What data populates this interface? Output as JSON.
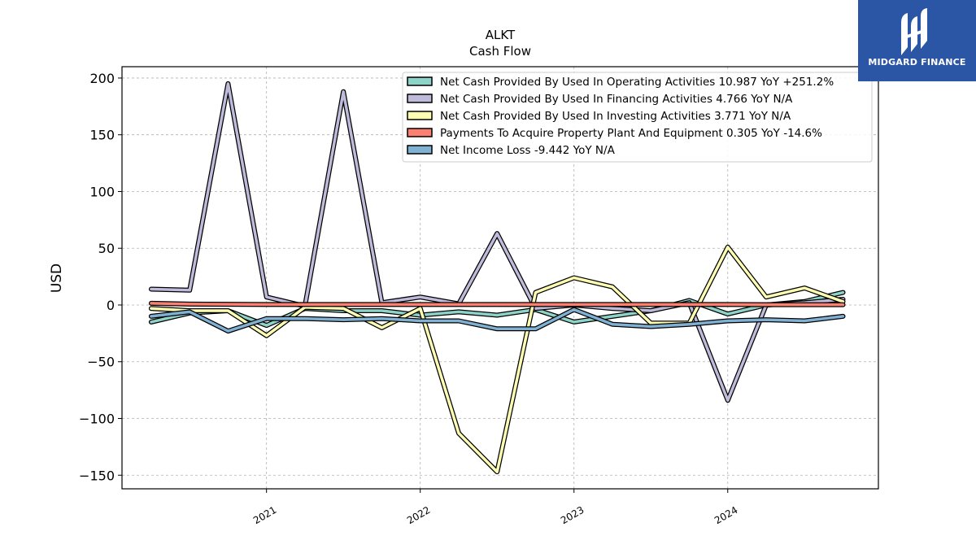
{
  "brand": {
    "name": "MIDGARD FINANCE",
    "logo_color": "#2b56a6"
  },
  "chart_data": {
    "type": "line",
    "title": "ALKT",
    "subtitle": "Cash Flow",
    "xlabel": "",
    "ylabel": "USD",
    "ylim": [
      -162,
      210
    ],
    "xlim": [
      2020.06,
      2024.98
    ],
    "yticks": [
      200,
      150,
      100,
      50,
      0,
      -50,
      -100,
      -150
    ],
    "ytick_labels": [
      "200",
      "150",
      "100",
      "50",
      "0",
      "−50",
      "−100",
      "−150"
    ],
    "xticks": [
      2021,
      2022,
      2023,
      2024
    ],
    "xtick_labels": [
      "2021",
      "2022",
      "2023",
      "2024"
    ],
    "grid": true,
    "legend_position": "top-right",
    "x": [
      2020.25,
      2020.5,
      2020.75,
      2021.0,
      2021.25,
      2021.5,
      2021.75,
      2022.0,
      2022.25,
      2022.5,
      2022.75,
      2023.0,
      2023.25,
      2023.5,
      2023.75,
      2024.0,
      2024.25,
      2024.5,
      2024.75
    ],
    "series": [
      {
        "name": "Net Cash Provided By Used In Operating Activities",
        "legend_label": "Net Cash Provided By Used In Operating Activities  10.987 YoY +251.2%",
        "color": "#8dd3c7",
        "values": [
          -15,
          -7,
          -5,
          -18,
          -3,
          -5,
          -5,
          -9,
          -6,
          -9,
          -4,
          -15,
          -10,
          -5,
          4,
          -8,
          0,
          3,
          11
        ]
      },
      {
        "name": "Net Cash Provided By Used In Financing Activities",
        "legend_label": "Net Cash Provided By Used In Financing Activities  4.766 YoY N/A",
        "color": "#bebada",
        "values": [
          14,
          13,
          195,
          7,
          -1,
          188,
          2,
          7,
          1,
          63,
          -3,
          0,
          -3,
          -5,
          2,
          -84,
          0,
          2,
          5
        ]
      },
      {
        "name": "Net Cash Provided By Used In Investing Activities",
        "legend_label": "Net Cash Provided By Used In Investing Activities  3.771 YoY N/A",
        "color": "#ffffb3",
        "values": [
          -3,
          -5,
          -5,
          -27,
          -2,
          -3,
          -20,
          -3,
          -113,
          -147,
          11,
          24,
          16,
          -16,
          -16,
          51,
          7,
          15,
          3
        ]
      },
      {
        "name": "Payments To Acquire Property Plant And Equipment",
        "legend_label": "Payments To Acquire Property Plant And Equipment  0.305 YoY -14.6%",
        "color": "#fb8072",
        "values": [
          1.5,
          0.8,
          0.6,
          0.4,
          0.4,
          0.4,
          0.4,
          0.4,
          0.4,
          0.4,
          0.4,
          0.4,
          0.4,
          0.4,
          0.4,
          0.4,
          0.3,
          0.3,
          0.3
        ]
      },
      {
        "name": "Net Income Loss",
        "legend_label": "Net Income Loss  -9.442 YoY N/A",
        "color": "#80b1d3",
        "values": [
          -10,
          -6,
          -23,
          -12,
          -12,
          -13,
          -12,
          -14,
          -14,
          -21,
          -21,
          -4,
          -17,
          -19,
          -17,
          -14,
          -13,
          -14,
          -10
        ]
      }
    ]
  }
}
